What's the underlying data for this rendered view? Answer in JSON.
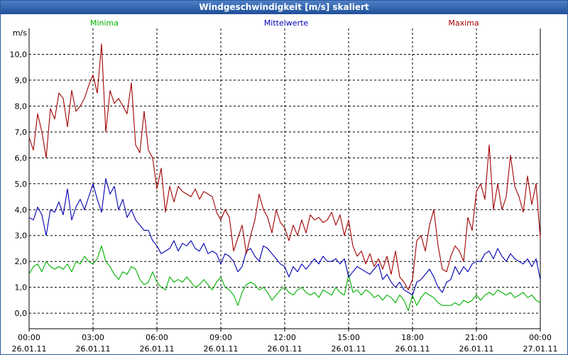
{
  "chart_data": {
    "type": "line",
    "title": "Windgeschwindigkeit [m/s] skaliert",
    "ylabel": "m/s",
    "ylim": [
      -0.6,
      11.0
    ],
    "yticks": [
      0,
      1,
      2,
      3,
      4,
      5,
      6,
      7,
      8,
      9,
      10
    ],
    "ytick_labels": [
      "0,0",
      "1,0",
      "2,0",
      "3,0",
      "4,0",
      "5,0",
      "6,0",
      "7,0",
      "8,0",
      "9,0",
      "10,0"
    ],
    "xlim": [
      0,
      24
    ],
    "xticks": [
      0,
      3,
      6,
      9,
      12,
      15,
      18,
      21,
      24
    ],
    "xtick_times": [
      "00:00",
      "03:00",
      "06:00",
      "09:00",
      "12:00",
      "15:00",
      "18:00",
      "21:00",
      "00:00"
    ],
    "xtick_dates": [
      "26.01.11",
      "26.01.11",
      "26.01.11",
      "26.01.11",
      "26.01.11",
      "26.01.11",
      "26.01.11",
      "26.01.11",
      "27.01.11"
    ],
    "x_hours": [
      0.0,
      0.2,
      0.4,
      0.6,
      0.8,
      1.0,
      1.2,
      1.4,
      1.6,
      1.8,
      2.0,
      2.2,
      2.4,
      2.6,
      2.8,
      3.0,
      3.2,
      3.4,
      3.6,
      3.8,
      4.0,
      4.2,
      4.4,
      4.6,
      4.8,
      5.0,
      5.2,
      5.4,
      5.6,
      5.8,
      6.0,
      6.2,
      6.4,
      6.6,
      6.8,
      7.0,
      7.2,
      7.4,
      7.6,
      7.8,
      8.0,
      8.2,
      8.4,
      8.6,
      8.8,
      9.0,
      9.2,
      9.4,
      9.6,
      9.8,
      10.0,
      10.2,
      10.4,
      10.6,
      10.8,
      11.0,
      11.2,
      11.4,
      11.6,
      11.8,
      12.0,
      12.2,
      12.4,
      12.6,
      12.8,
      13.0,
      13.2,
      13.4,
      13.6,
      13.8,
      14.0,
      14.2,
      14.4,
      14.6,
      14.8,
      15.0,
      15.2,
      15.4,
      15.6,
      15.8,
      16.0,
      16.2,
      16.4,
      16.6,
      16.8,
      17.0,
      17.2,
      17.4,
      17.6,
      17.8,
      18.0,
      18.2,
      18.4,
      18.6,
      18.8,
      19.0,
      19.2,
      19.4,
      19.6,
      19.8,
      20.0,
      20.2,
      20.4,
      20.6,
      20.8,
      21.0,
      21.2,
      21.4,
      21.6,
      21.8,
      22.0,
      22.2,
      22.4,
      22.6,
      22.8,
      23.0,
      23.2,
      23.4,
      23.6,
      23.8,
      24.0
    ],
    "series": [
      {
        "name": "Minima",
        "color": "#00b000",
        "legend_position": "top-left",
        "values": [
          1.5,
          1.8,
          1.9,
          1.6,
          2.0,
          1.8,
          1.7,
          1.8,
          1.7,
          1.9,
          1.6,
          2.0,
          1.9,
          2.2,
          2.0,
          1.9,
          2.1,
          2.6,
          2.0,
          1.8,
          1.5,
          1.3,
          1.6,
          1.5,
          1.8,
          1.7,
          1.3,
          1.1,
          1.2,
          1.6,
          1.2,
          1.0,
          0.9,
          1.4,
          1.2,
          1.3,
          1.2,
          1.4,
          1.2,
          1.0,
          1.1,
          1.3,
          1.1,
          0.9,
          1.2,
          1.4,
          1.0,
          0.9,
          0.7,
          0.3,
          0.8,
          1.1,
          1.2,
          1.1,
          0.9,
          1.0,
          0.8,
          0.5,
          0.7,
          0.9,
          1.0,
          0.8,
          0.7,
          0.9,
          1.0,
          0.8,
          0.7,
          0.8,
          0.6,
          0.9,
          0.8,
          0.7,
          1.0,
          0.8,
          0.7,
          1.5,
          0.8,
          0.9,
          0.7,
          0.9,
          0.8,
          0.6,
          0.7,
          0.5,
          0.7,
          0.6,
          0.4,
          0.7,
          0.5,
          0.1,
          0.7,
          0.3,
          0.6,
          0.8,
          0.7,
          0.6,
          0.4,
          0.3,
          0.3,
          0.3,
          0.4,
          0.3,
          0.5,
          0.4,
          0.5,
          0.7,
          0.5,
          0.7,
          0.8,
          0.7,
          0.9,
          0.8,
          0.7,
          0.8,
          0.6,
          0.7,
          0.8,
          0.6,
          0.7,
          0.5,
          0.4
        ]
      },
      {
        "name": "Mittelwerte",
        "color": "#0000b0",
        "legend_position": "top-center",
        "values": [
          3.7,
          3.6,
          4.1,
          3.8,
          3.0,
          4.0,
          3.9,
          4.3,
          3.8,
          4.8,
          3.6,
          4.1,
          4.4,
          4.0,
          4.5,
          5.0,
          4.4,
          3.9,
          5.2,
          4.6,
          4.9,
          4.0,
          4.4,
          3.7,
          4.0,
          3.6,
          3.4,
          3.2,
          3.2,
          2.8,
          2.6,
          2.3,
          2.4,
          2.5,
          2.8,
          2.4,
          2.7,
          2.6,
          2.8,
          2.5,
          2.4,
          2.7,
          2.3,
          2.4,
          2.3,
          1.9,
          2.3,
          2.2,
          2.0,
          1.6,
          1.8,
          2.4,
          2.5,
          2.2,
          2.0,
          2.6,
          2.5,
          2.3,
          2.1,
          1.9,
          1.8,
          1.4,
          1.8,
          1.6,
          1.9,
          1.7,
          1.9,
          2.1,
          1.9,
          2.2,
          2.0,
          2.0,
          2.1,
          1.9,
          2.1,
          1.4,
          1.6,
          1.8,
          1.7,
          1.6,
          1.5,
          1.7,
          1.9,
          1.3,
          1.5,
          1.2,
          1.0,
          1.2,
          0.9,
          0.8,
          0.7,
          1.2,
          1.3,
          1.5,
          1.7,
          1.4,
          1.0,
          0.8,
          1.2,
          1.3,
          1.8,
          1.5,
          1.8,
          1.6,
          1.9,
          2.0,
          2.0,
          2.3,
          2.4,
          2.1,
          2.5,
          2.2,
          2.0,
          2.3,
          2.1,
          2.0,
          1.9,
          2.1,
          1.8,
          2.1,
          1.3
        ]
      },
      {
        "name": "Maxima",
        "color": "#a00000",
        "legend_position": "top-right",
        "values": [
          6.8,
          6.3,
          7.7,
          7.0,
          6.0,
          7.9,
          7.5,
          8.5,
          8.3,
          7.2,
          8.6,
          7.8,
          8.0,
          8.3,
          8.8,
          9.2,
          8.5,
          10.4,
          7.0,
          8.6,
          8.1,
          8.3,
          8.0,
          7.7,
          8.9,
          6.5,
          6.2,
          7.8,
          6.3,
          6.0,
          4.8,
          5.6,
          3.9,
          4.9,
          4.3,
          4.9,
          4.7,
          4.6,
          4.5,
          4.8,
          4.4,
          4.7,
          4.6,
          4.5,
          3.9,
          3.6,
          4.0,
          3.7,
          2.4,
          2.9,
          3.4,
          2.3,
          3.0,
          3.6,
          4.6,
          4.0,
          3.7,
          3.1,
          4.0,
          3.5,
          3.3,
          2.8,
          3.4,
          3.0,
          3.6,
          3.1,
          3.8,
          3.6,
          3.7,
          3.5,
          3.6,
          3.9,
          3.4,
          3.8,
          3.0,
          3.6,
          2.6,
          2.2,
          2.4,
          1.9,
          2.3,
          1.8,
          2.1,
          1.7,
          2.2,
          1.5,
          2.4,
          1.4,
          1.2,
          0.9,
          1.3,
          2.8,
          3.0,
          2.4,
          3.4,
          4.0,
          2.6,
          1.7,
          1.6,
          2.2,
          2.6,
          2.4,
          2.0,
          3.7,
          3.2,
          4.7,
          5.0,
          4.4,
          6.5,
          4.0,
          5.0,
          4.0,
          4.5,
          6.1,
          4.9,
          4.5,
          3.9,
          5.3,
          4.2,
          5.0,
          2.9
        ]
      }
    ]
  }
}
